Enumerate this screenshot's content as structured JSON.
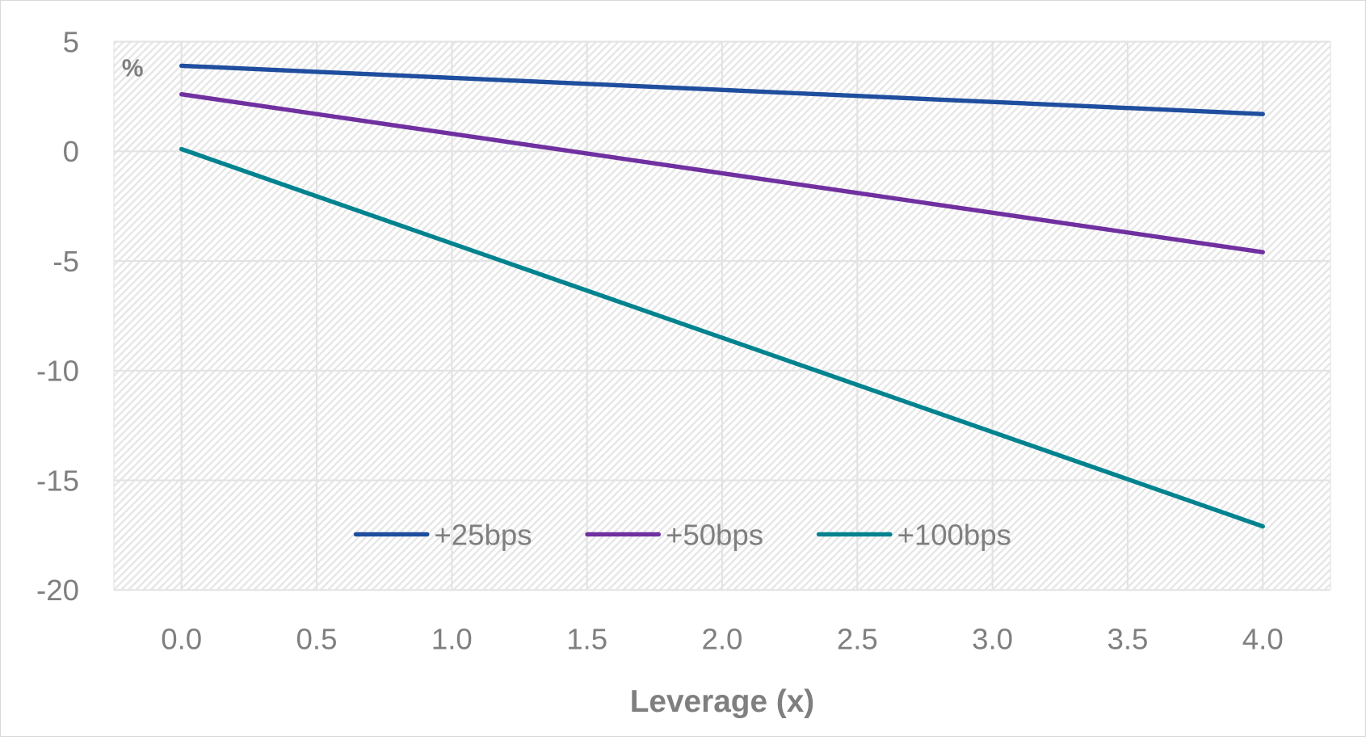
{
  "chart_data": {
    "type": "line",
    "title": "",
    "xlabel": "Leverage (x)",
    "ylabel": "%",
    "xlim": [
      -0.25,
      4.25
    ],
    "ylim": [
      -20,
      5
    ],
    "xticks": [
      "0.0",
      "0.5",
      "1.0",
      "1.5",
      "2.0",
      "2.5",
      "3.0",
      "3.5",
      "4.0"
    ],
    "yticks": [
      "5",
      "0",
      "-5",
      "-10",
      "-15",
      "-20"
    ],
    "grid": true,
    "legend_position": "bottom-center",
    "x": [
      0,
      4
    ],
    "series": [
      {
        "name": "+25bps",
        "color": "#1f4e9f",
        "values": [
          3.9,
          1.7
        ]
      },
      {
        "name": "+50bps",
        "color": "#7030a0",
        "values": [
          2.6,
          -4.6
        ]
      },
      {
        "name": "+100bps",
        "color": "#00838f",
        "values": [
          0.1,
          -17.1
        ]
      }
    ]
  }
}
